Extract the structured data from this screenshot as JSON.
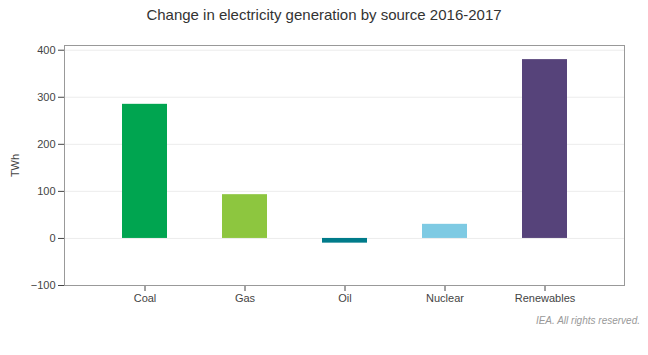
{
  "chart_data": {
    "type": "bar",
    "title": "Change in electricity generation by source 2016-2017",
    "categories": [
      "Coal",
      "Gas",
      "Oil",
      "Nuclear",
      "Renewables"
    ],
    "values": [
      285,
      93,
      -10,
      30,
      380
    ],
    "colors": [
      "#00a550",
      "#8dc63f",
      "#007b8a",
      "#7ecae3",
      "#56437a"
    ],
    "ylabel": "TWh",
    "ylim": [
      -100,
      410
    ],
    "yticks": [
      -100,
      0,
      100,
      200,
      300,
      400
    ],
    "grid": true,
    "caption": "IEA. All rights reserved."
  }
}
